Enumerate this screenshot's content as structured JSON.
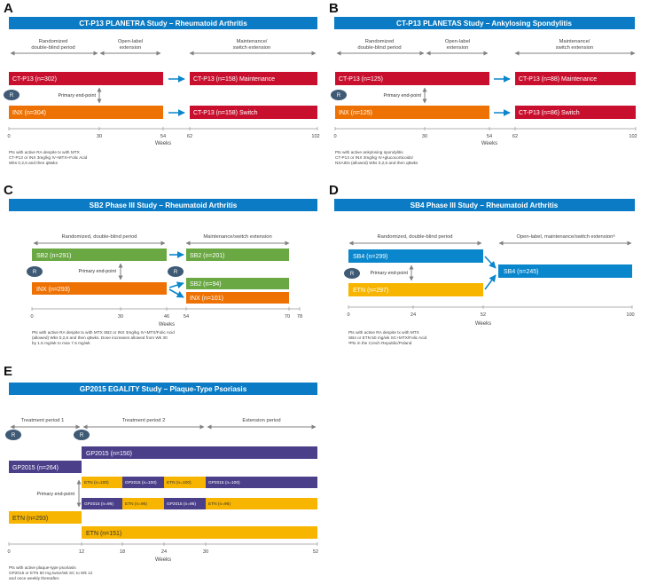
{
  "colors": {
    "title_blue": "#0a7bc4",
    "red": "#c8102e",
    "orange": "#ee7203",
    "green": "#6aa843",
    "blue": "#0a86cc",
    "yellow": "#f7b500",
    "purple": "#4b3f8a",
    "r_marker": "#3f5a75",
    "arrow_grey": "#808080",
    "arrow_blue": "#0a86cc"
  },
  "panels": {
    "A": {
      "label": "A",
      "title": "CT-P13 PLANETRA Study – Rheumatoid Arthritis",
      "periods": [
        "Randomized",
        "double-blind period",
        "Open-label",
        "extension",
        "Maintenance/",
        "switch extension"
      ],
      "marker": "R",
      "endpoint": "Primary end-point",
      "bars": [
        "CT-P13 (n=302)",
        "INX (n=304)",
        "CT-P13 (n=158) Maintenance",
        "CT-P13 (n=158) Switch"
      ],
      "ticks": [
        "0",
        "30",
        "54",
        "62",
        "102"
      ],
      "axis_label": "Weeks",
      "notes": [
        "Pts with active RA despite tx with MTX",
        "CT-P13 or INX 3mg/kg IV+MTX+Folic Acid",
        "Wks 0,2,6 and then q8wks"
      ]
    },
    "B": {
      "label": "B",
      "title": "CT-P13 PLANETAS Study – Ankylosing Spondylitis",
      "periods": [
        "Randomized",
        "double-blind period",
        "Open-label",
        "extension",
        "Maintenance/",
        "switch extension"
      ],
      "marker": "R",
      "endpoint": "Primary end-point",
      "bars": [
        "CT-P13 (n=125)",
        "INX (n=125)",
        "CT-P13 (n=88) Maintenance",
        "CT-P13 (n=86) Switch"
      ],
      "ticks": [
        "0",
        "30",
        "54",
        "62",
        "102"
      ],
      "axis_label": "Weeks",
      "notes": [
        "Pts with active ankylosing spondylitis",
        "CT-P13 or INX 3mg/kg IV+glucocorticoids/",
        "NSAIDs (allowed) Wks 0,2,6 and then q8wks"
      ]
    },
    "C": {
      "label": "C",
      "title": "SB2 Phase III Study – Rheumatoid Arthritis",
      "periods": [
        "Randomized, double-blind period",
        "Maintenance/switch extension"
      ],
      "markers": [
        "R",
        "R"
      ],
      "endpoint": "Primary end-point",
      "bars": [
        "SB2 (n=291)",
        "INX (n=293)",
        "SB2 (n=201)",
        "SB2 (n=94)",
        "INX (n=101)"
      ],
      "ticks": [
        "0",
        "30",
        "46",
        "54",
        "70",
        "78"
      ],
      "axis_label": "Weeks",
      "notes": [
        "Pts with active RA despite tx with MTX SB2 or INX 3mg/kg IV+MTX/Folic Acid",
        "(allowed) Wks 0,2,6 and then q8wks. Dose increases allowed from Wk 30",
        "by 1.5 mg/wk to max 7.5 mg/wk"
      ]
    },
    "D": {
      "label": "D",
      "title": "SB4 Phase III Study – Rheumatoid Arthritis",
      "periods": [
        "Randomized, double-blind period",
        "Open-label, maintenance/switch extensionᵃ"
      ],
      "marker": "R",
      "endpoint": "Primary end-point",
      "bars": [
        "SB4 (n=299)",
        "ETN (n=297)",
        "SB4 (n=245)"
      ],
      "ticks": [
        "0",
        "24",
        "52",
        "100"
      ],
      "axis_label": "Weeks",
      "notes": [
        "Pts with active RA despite tx with MTX",
        "SB4 or ETN 50 mg/wk SC+MTX/Folic Acid",
        "ᵃPts in the Czech Republic/Poland"
      ]
    },
    "E": {
      "label": "E",
      "title": "GP2015 EGALITY Study – Plaque-Type Psoriasis",
      "periods": [
        "Treatment period 1",
        "Treatment period 2",
        "Extension period"
      ],
      "markers": [
        "R",
        "R"
      ],
      "endpoint": "Primary end-point",
      "bars": [
        "GP2015 (n=150)",
        "GP2015 (n=264)",
        "ETN (n=293)",
        "ETN (n=151)"
      ],
      "row1": [
        "ETN (n=100)",
        "GP2015 (n=100)",
        "ETN (n=100)",
        "GP2015 (n=100)"
      ],
      "row2": [
        "GP2015 (n=96)",
        "ETN (n=96)",
        "GP2015 (n=96)",
        "ETN (n=96)"
      ],
      "ticks": [
        "0",
        "12",
        "18",
        "24",
        "30",
        "52"
      ],
      "axis_label": "Weeks",
      "notes": [
        "Pts with active plaque-type psoriasis",
        "GP2015 or ETN 50 mg twice/wk SC to Wk 12",
        "and once weekly thereafter."
      ]
    }
  }
}
